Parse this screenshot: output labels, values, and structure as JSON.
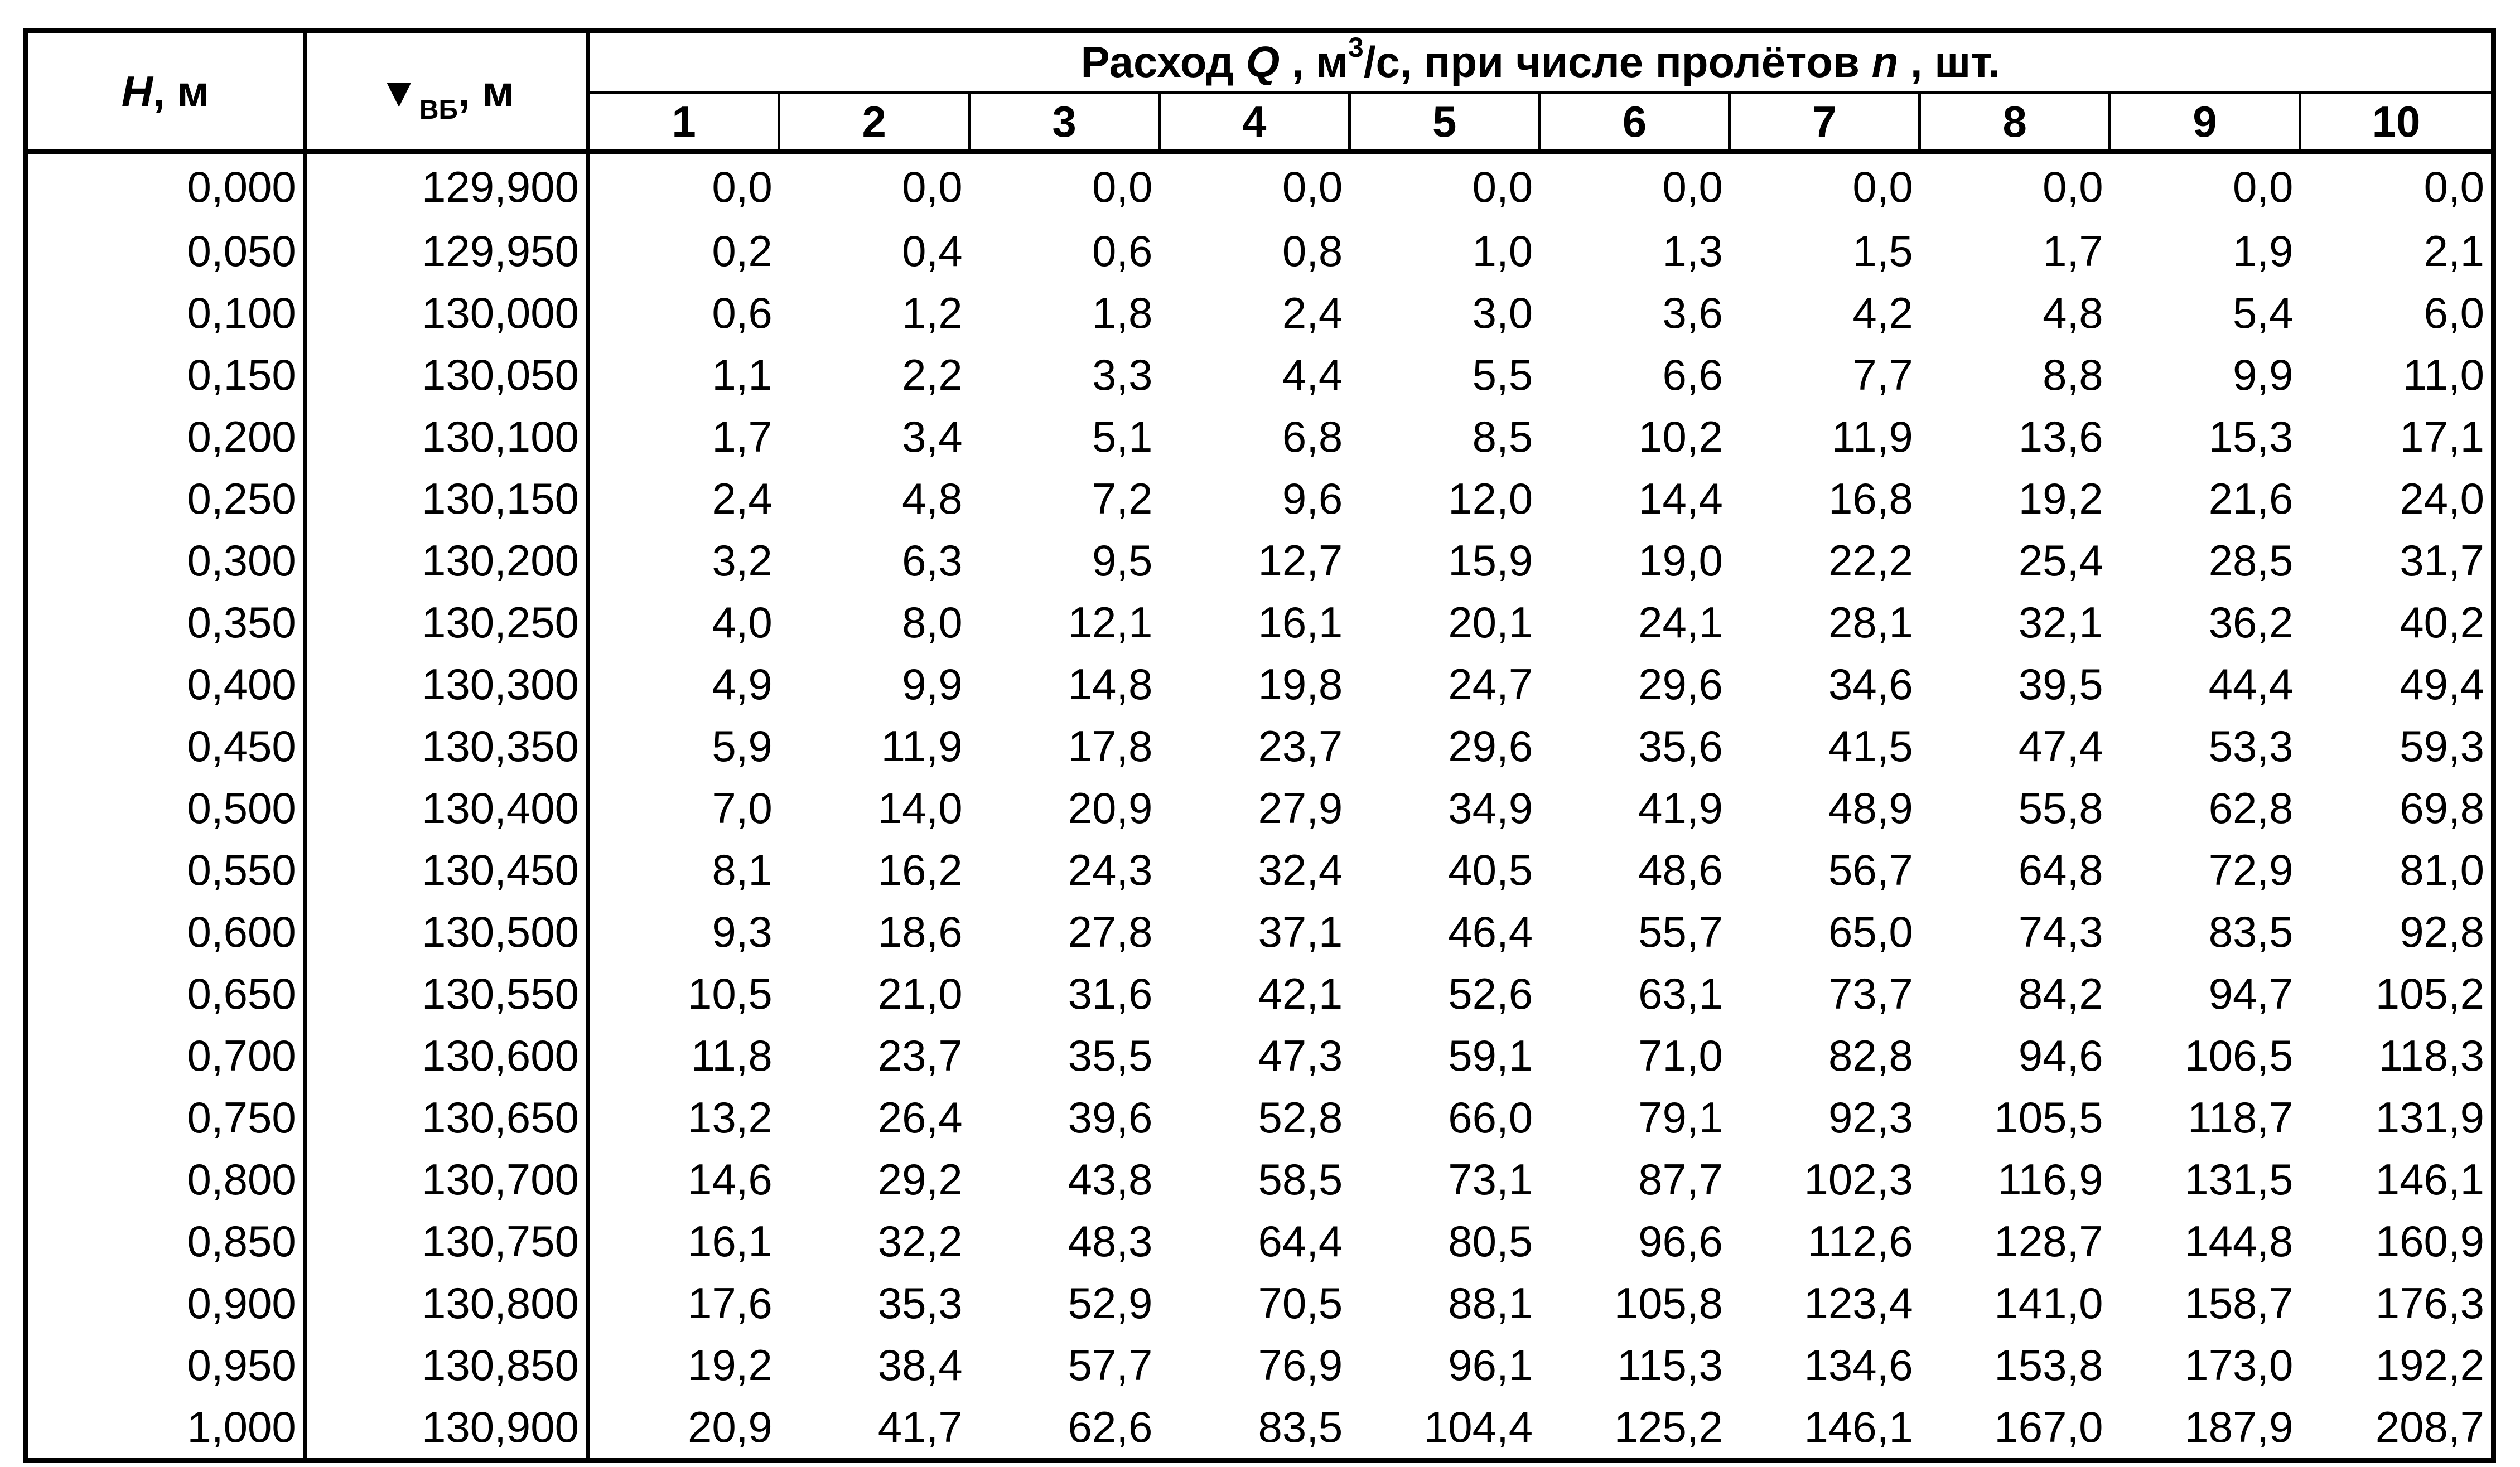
{
  "header": {
    "h_symbol": "H",
    "h_unit": ", м",
    "z_symbol": "▼",
    "z_sub": "ВБ",
    "z_unit": ", м",
    "q_prefix": "Расход ",
    "q_symbol": "Q",
    "q_unit_a": " , м",
    "q_unit_sup": "3",
    "q_unit_b": "/с, при числе пролётов ",
    "n_symbol": "n",
    "q_suffix": " , шт.",
    "n_columns": [
      "1",
      "2",
      "3",
      "4",
      "5",
      "6",
      "7",
      "8",
      "9",
      "10"
    ]
  },
  "rows": [
    {
      "h": "0,000",
      "z": "129,900",
      "q": [
        "0,0",
        "0,0",
        "0,0",
        "0,0",
        "0,0",
        "0,0",
        "0,0",
        "0,0",
        "0,0",
        "0,0"
      ]
    },
    {
      "h": "0,050",
      "z": "129,950",
      "q": [
        "0,2",
        "0,4",
        "0,6",
        "0,8",
        "1,0",
        "1,3",
        "1,5",
        "1,7",
        "1,9",
        "2,1"
      ]
    },
    {
      "h": "0,100",
      "z": "130,000",
      "q": [
        "0,6",
        "1,2",
        "1,8",
        "2,4",
        "3,0",
        "3,6",
        "4,2",
        "4,8",
        "5,4",
        "6,0"
      ]
    },
    {
      "h": "0,150",
      "z": "130,050",
      "q": [
        "1,1",
        "2,2",
        "3,3",
        "4,4",
        "5,5",
        "6,6",
        "7,7",
        "8,8",
        "9,9",
        "11,0"
      ]
    },
    {
      "h": "0,200",
      "z": "130,100",
      "q": [
        "1,7",
        "3,4",
        "5,1",
        "6,8",
        "8,5",
        "10,2",
        "11,9",
        "13,6",
        "15,3",
        "17,1"
      ]
    },
    {
      "h": "0,250",
      "z": "130,150",
      "q": [
        "2,4",
        "4,8",
        "7,2",
        "9,6",
        "12,0",
        "14,4",
        "16,8",
        "19,2",
        "21,6",
        "24,0"
      ]
    },
    {
      "h": "0,300",
      "z": "130,200",
      "q": [
        "3,2",
        "6,3",
        "9,5",
        "12,7",
        "15,9",
        "19,0",
        "22,2",
        "25,4",
        "28,5",
        "31,7"
      ]
    },
    {
      "h": "0,350",
      "z": "130,250",
      "q": [
        "4,0",
        "8,0",
        "12,1",
        "16,1",
        "20,1",
        "24,1",
        "28,1",
        "32,1",
        "36,2",
        "40,2"
      ]
    },
    {
      "h": "0,400",
      "z": "130,300",
      "q": [
        "4,9",
        "9,9",
        "14,8",
        "19,8",
        "24,7",
        "29,6",
        "34,6",
        "39,5",
        "44,4",
        "49,4"
      ]
    },
    {
      "h": "0,450",
      "z": "130,350",
      "q": [
        "5,9",
        "11,9",
        "17,8",
        "23,7",
        "29,6",
        "35,6",
        "41,5",
        "47,4",
        "53,3",
        "59,3"
      ]
    },
    {
      "h": "0,500",
      "z": "130,400",
      "q": [
        "7,0",
        "14,0",
        "20,9",
        "27,9",
        "34,9",
        "41,9",
        "48,9",
        "55,8",
        "62,8",
        "69,8"
      ]
    },
    {
      "h": "0,550",
      "z": "130,450",
      "q": [
        "8,1",
        "16,2",
        "24,3",
        "32,4",
        "40,5",
        "48,6",
        "56,7",
        "64,8",
        "72,9",
        "81,0"
      ]
    },
    {
      "h": "0,600",
      "z": "130,500",
      "q": [
        "9,3",
        "18,6",
        "27,8",
        "37,1",
        "46,4",
        "55,7",
        "65,0",
        "74,3",
        "83,5",
        "92,8"
      ]
    },
    {
      "h": "0,650",
      "z": "130,550",
      "q": [
        "10,5",
        "21,0",
        "31,6",
        "42,1",
        "52,6",
        "63,1",
        "73,7",
        "84,2",
        "94,7",
        "105,2"
      ]
    },
    {
      "h": "0,700",
      "z": "130,600",
      "q": [
        "11,8",
        "23,7",
        "35,5",
        "47,3",
        "59,1",
        "71,0",
        "82,8",
        "94,6",
        "106,5",
        "118,3"
      ]
    },
    {
      "h": "0,750",
      "z": "130,650",
      "q": [
        "13,2",
        "26,4",
        "39,6",
        "52,8",
        "66,0",
        "79,1",
        "92,3",
        "105,5",
        "118,7",
        "131,9"
      ]
    },
    {
      "h": "0,800",
      "z": "130,700",
      "q": [
        "14,6",
        "29,2",
        "43,8",
        "58,5",
        "73,1",
        "87,7",
        "102,3",
        "116,9",
        "131,5",
        "146,1"
      ]
    },
    {
      "h": "0,850",
      "z": "130,750",
      "q": [
        "16,1",
        "32,2",
        "48,3",
        "64,4",
        "80,5",
        "96,6",
        "112,6",
        "128,7",
        "144,8",
        "160,9"
      ]
    },
    {
      "h": "0,900",
      "z": "130,800",
      "q": [
        "17,6",
        "35,3",
        "52,9",
        "70,5",
        "88,1",
        "105,8",
        "123,4",
        "141,0",
        "158,7",
        "176,3"
      ]
    },
    {
      "h": "0,950",
      "z": "130,850",
      "q": [
        "19,2",
        "38,4",
        "57,7",
        "76,9",
        "96,1",
        "115,3",
        "134,6",
        "153,8",
        "173,0",
        "192,2"
      ]
    },
    {
      "h": "1,000",
      "z": "130,900",
      "q": [
        "20,9",
        "41,7",
        "62,6",
        "83,5",
        "104,4",
        "125,2",
        "146,1",
        "167,0",
        "187,9",
        "208,7"
      ]
    }
  ]
}
